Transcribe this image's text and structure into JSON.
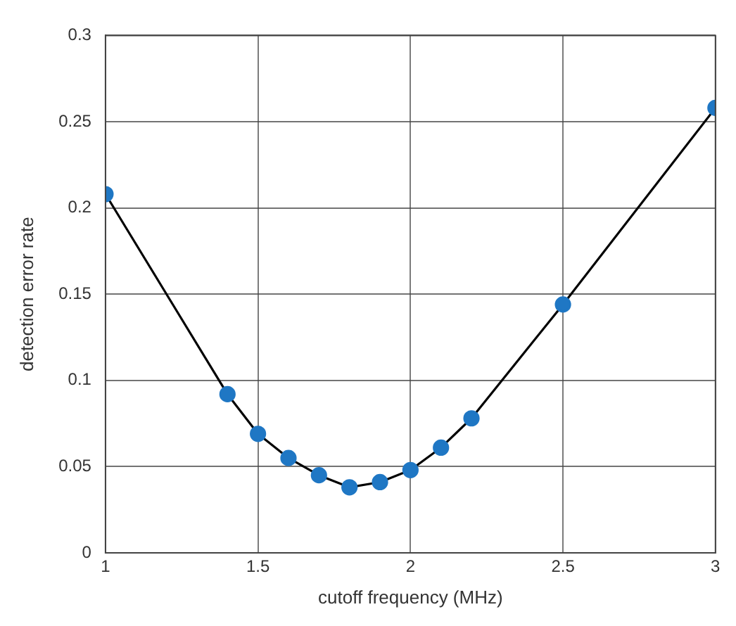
{
  "chart_data": {
    "type": "line",
    "xlabel": "cutoff frequency (MHz)",
    "ylabel": "detection error rate",
    "x": [
      1,
      1.4,
      1.5,
      1.6,
      1.7,
      1.8,
      1.9,
      2.0,
      2.1,
      2.2,
      2.5,
      3
    ],
    "series": [
      {
        "color": "#1f77c4",
        "values": [
          0.208,
          0.092,
          0.069,
          0.055,
          0.045,
          0.038,
          0.041,
          0.048,
          0.061,
          0.078,
          0.144,
          0.258
        ]
      }
    ],
    "xlim": [
      1,
      3
    ],
    "xticks": [
      1,
      1.5,
      2,
      2.5,
      3
    ],
    "ylim": [
      0,
      0.3
    ],
    "yticks": [
      0,
      0.05,
      0.1,
      0.15,
      0.2,
      0.25,
      0.3
    ],
    "grid": true,
    "marker": "circle",
    "line_style": "solid"
  }
}
